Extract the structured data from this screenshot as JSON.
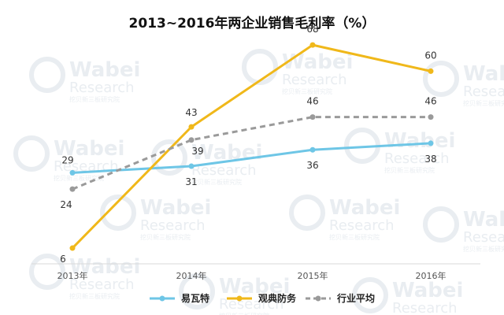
{
  "chart_data": {
    "type": "line",
    "title": "2013~2016年两企业销售毛利率（%）",
    "xlabel": "",
    "ylabel": "",
    "categories": [
      "2013年",
      "2014年",
      "2015年",
      "2016年"
    ],
    "ylim": [
      0,
      75
    ],
    "grid": false,
    "legend_position": "bottom",
    "series": [
      {
        "name": "易瓦特",
        "values": [
          29,
          31,
          36,
          38
        ],
        "color": "#6ec6e6",
        "style": "solid"
      },
      {
        "name": "观典防务",
        "values": [
          6,
          43,
          68,
          60
        ],
        "color": "#f0b81a",
        "style": "solid"
      },
      {
        "name": "行业平均",
        "values": [
          24,
          39,
          46,
          46
        ],
        "color": "#9a9a9a",
        "style": "dashed"
      }
    ]
  },
  "watermark": {
    "logo": "Wabei Research",
    "subtitle": "挖贝新三板研究院"
  }
}
